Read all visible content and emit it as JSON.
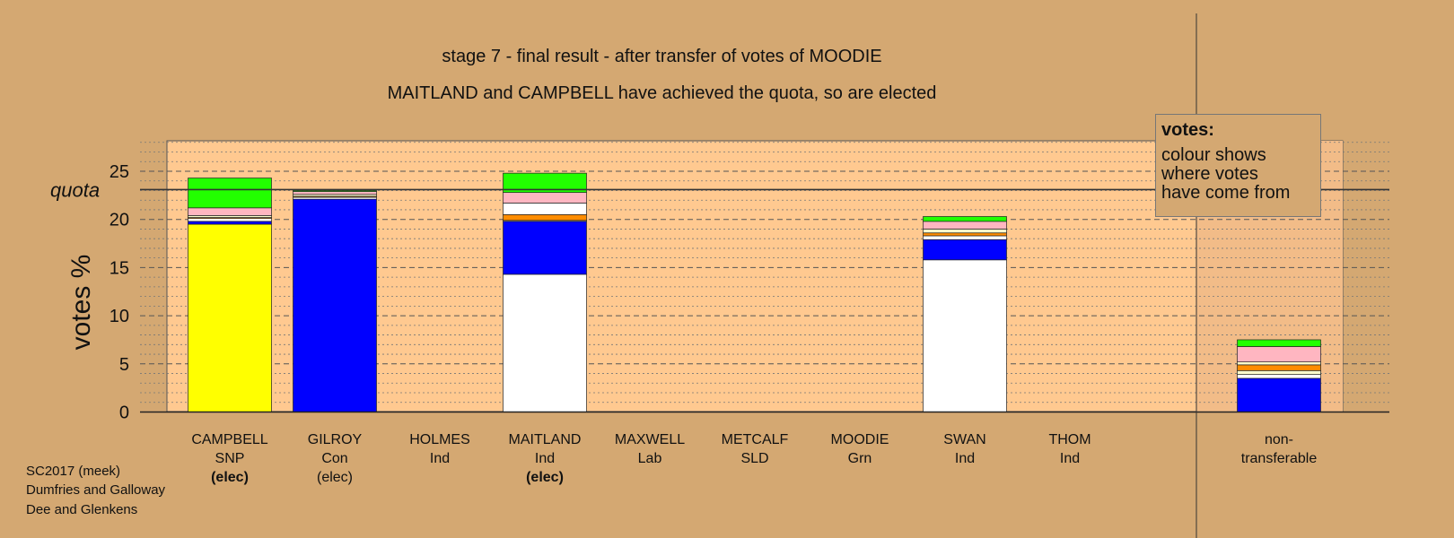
{
  "title_lines": [
    "stage 7 - final result - after transfer of votes of MOODIE",
    "MAITLAND and CAMPBELL have achieved the quota, so are elected"
  ],
  "legend": {
    "title": "votes:",
    "lines": [
      "colour shows",
      "where votes",
      "have come from"
    ]
  },
  "footer": [
    "SC2017 (meek)",
    "Dumfries and Galloway",
    "Dee and Glenkens"
  ],
  "colors": {
    "background": "#d4a872",
    "plot": "#ffc990",
    "snp": "#ffff00",
    "con": "#0000ff",
    "ind": "#ffffff",
    "lab": "#ff8c00",
    "sld": "#ffffcc",
    "grn": "#22ff00",
    "other": "#ffb6c1",
    "quota_line": "#333333"
  },
  "candidates": [
    {
      "name": "CAMPBELL",
      "party": "SNP",
      "status": "(elec)",
      "status_bold": true
    },
    {
      "name": "GILROY",
      "party": "Con",
      "status": "(elec)",
      "status_bold": false
    },
    {
      "name": "HOLMES",
      "party": "Ind",
      "status": "",
      "status_bold": false
    },
    {
      "name": "MAITLAND",
      "party": "Ind",
      "status": "(elec)",
      "status_bold": true
    },
    {
      "name": "MAXWELL",
      "party": "Lab",
      "status": "",
      "status_bold": false
    },
    {
      "name": "METCALF",
      "party": "SLD",
      "status": "",
      "status_bold": false
    },
    {
      "name": "MOODIE",
      "party": "Grn",
      "status": "",
      "status_bold": false
    },
    {
      "name": "SWAN",
      "party": "Ind",
      "status": "",
      "status_bold": false
    },
    {
      "name": "THOM",
      "party": "Ind",
      "status": "",
      "status_bold": false
    }
  ],
  "nontransferable_label": [
    "non-",
    "transferable"
  ],
  "chart_data": {
    "type": "bar",
    "stacked": true,
    "ylabel": "votes %",
    "ylim": [
      0,
      28
    ],
    "yticks": [
      0,
      5,
      10,
      15,
      20,
      25
    ],
    "quota": 23.1,
    "quota_label": "quota",
    "categories": [
      "CAMPBELL",
      "GILROY",
      "HOLMES",
      "MAITLAND",
      "MAXWELL",
      "METCALF",
      "MOODIE",
      "SWAN",
      "THOM",
      "non-transferable"
    ],
    "bars": [
      {
        "category": "CAMPBELL",
        "segments": [
          {
            "color": "#ffff00",
            "value": 19.5
          },
          {
            "color": "#0000ff",
            "value": 0.3
          },
          {
            "color": "#ffffff",
            "value": 0.3
          },
          {
            "color": "#ff8c00",
            "value": 0.1
          },
          {
            "color": "#ffffcc",
            "value": 0.2
          },
          {
            "color": "#ffb6c1",
            "value": 0.8
          },
          {
            "color": "#22ff00",
            "value": 3.1
          }
        ]
      },
      {
        "category": "GILROY",
        "segments": [
          {
            "color": "#0000ff",
            "value": 22.1
          },
          {
            "color": "#ffffff",
            "value": 0.2
          },
          {
            "color": "#ff8c00",
            "value": 0.1
          },
          {
            "color": "#ffffcc",
            "value": 0.2
          },
          {
            "color": "#ffb6c1",
            "value": 0.3
          },
          {
            "color": "#22ff00",
            "value": 0.1
          }
        ]
      },
      {
        "category": "MAITLAND",
        "segments": [
          {
            "color": "#ffffff",
            "value": 14.3
          },
          {
            "color": "#0000ff",
            "value": 5.5
          },
          {
            "color": "#ffffcc",
            "value": 0.1
          },
          {
            "color": "#ff8c00",
            "value": 0.6
          },
          {
            "color": "#ffffff",
            "value": 1.2
          },
          {
            "color": "#ffb6c1",
            "value": 1.1
          },
          {
            "color": "#22ff00",
            "value": 2.0
          }
        ]
      },
      {
        "category": "SWAN",
        "segments": [
          {
            "color": "#ffffff",
            "value": 15.8
          },
          {
            "color": "#0000ff",
            "value": 2.1
          },
          {
            "color": "#ffffff",
            "value": 0.4
          },
          {
            "color": "#ff8c00",
            "value": 0.3
          },
          {
            "color": "#ffffcc",
            "value": 0.4
          },
          {
            "color": "#ffb6c1",
            "value": 0.8
          },
          {
            "color": "#22ff00",
            "value": 0.5
          }
        ]
      },
      {
        "category": "non-transferable",
        "segments": [
          {
            "color": "#0000ff",
            "value": 3.5
          },
          {
            "color": "#ffffff",
            "value": 0.4
          },
          {
            "color": "#ffffcc",
            "value": 0.4
          },
          {
            "color": "#ff8c00",
            "value": 0.6
          },
          {
            "color": "#ffffcc",
            "value": 0.3
          },
          {
            "color": "#ffb6c1",
            "value": 1.6
          },
          {
            "color": "#22ff00",
            "value": 0.7
          }
        ]
      }
    ]
  }
}
